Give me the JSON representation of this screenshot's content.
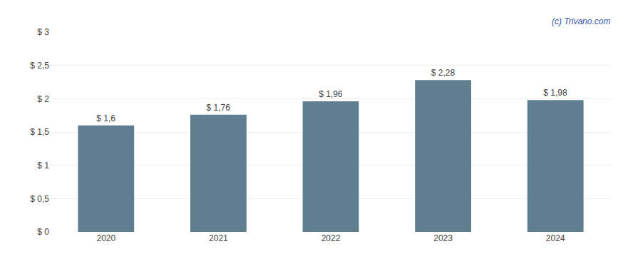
{
  "chart_data": {
    "type": "bar",
    "categories": [
      "2020",
      "2021",
      "2022",
      "2023",
      "2024"
    ],
    "values": [
      1.6,
      1.76,
      1.96,
      2.28,
      1.98
    ],
    "value_labels": [
      "$ 1,6",
      "$ 1,76",
      "$ 1,96",
      "$ 2,28",
      "$ 1,98"
    ],
    "data_labels": true,
    "color": "#5f7f90",
    "ylim": [
      0,
      3.0
    ],
    "yticks": [
      {
        "value": 0,
        "label": "$ 0"
      },
      {
        "value": 0.5,
        "label": "$ 0,5"
      },
      {
        "value": 1.0,
        "label": "$ 1"
      },
      {
        "value": 1.5,
        "label": "$ 1,5"
      },
      {
        "value": 2.0,
        "label": "$ 2"
      },
      {
        "value": 2.5,
        "label": "$ 2,5"
      },
      {
        "value": 3.0,
        "label": "$ 3"
      }
    ],
    "grid": true,
    "annotations": [
      {
        "text": "(c) Trivano.com",
        "color": "#3355aa"
      }
    ]
  }
}
